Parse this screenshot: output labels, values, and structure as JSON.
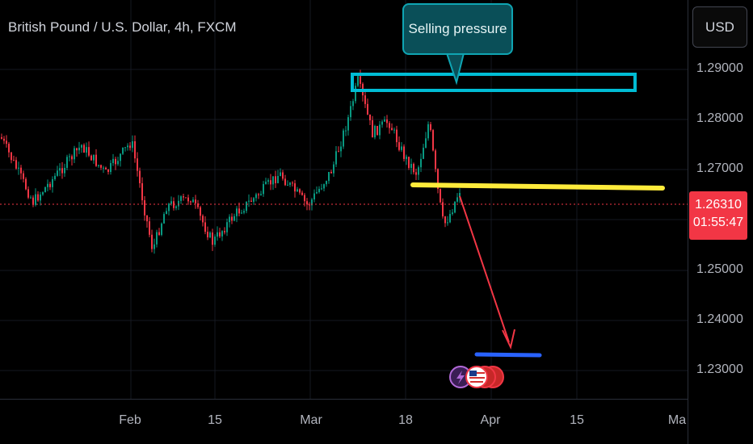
{
  "header": {
    "title": "British Pound / U.S. Dollar, 4h, FXCM"
  },
  "toolbar": {
    "currency_label": "USD"
  },
  "price_scale": {
    "ticks": [
      "1.29000",
      "1.28000",
      "1.27000",
      "1.25000",
      "1.24000",
      "1.23000"
    ],
    "current_price": "1.26310",
    "countdown": "01:55:47"
  },
  "time_scale": {
    "ticks": [
      "Feb",
      "15",
      "Mar",
      "18",
      "Apr",
      "15",
      "Ma"
    ]
  },
  "annotations": {
    "callout_text": "Selling pressure",
    "levels": {
      "resistance_zone": [
        1.2868,
        1.2888
      ],
      "support_line": [
        1.2667,
        1.2665
      ],
      "target_line": [
        1.233,
        1.2328
      ]
    }
  },
  "colors": {
    "up_candle": "#089981",
    "down_candle": "#f23645",
    "resistance_box": "#00bcd4",
    "support_line": "#ffeb3b",
    "target_line": "#2962ff",
    "arrow": "#f23645",
    "price_line": "#f23645"
  },
  "icons": [
    "flash-icon",
    "us-flag-event-icon"
  ]
}
